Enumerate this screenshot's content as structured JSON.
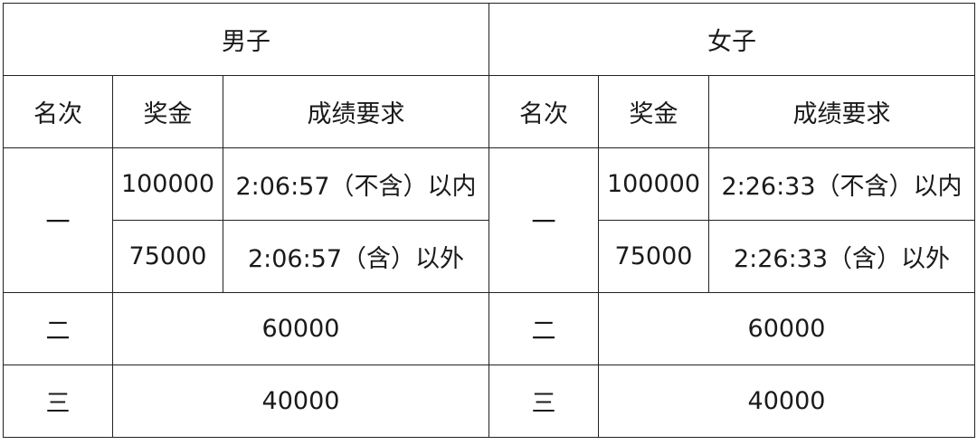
{
  "groups": [
    "男子",
    "女子"
  ],
  "headers": [
    "名次",
    "奖金",
    "成绩要求"
  ],
  "men": {
    "first_rank": "一",
    "first_rows": [
      {
        "prize": "100000",
        "requirement": "2:06:57（不含）以内"
      },
      {
        "prize": "75000",
        "requirement": "2:06:57（含）以外"
      }
    ],
    "others": [
      {
        "rank": "二",
        "prize": "60000"
      },
      {
        "rank": "三",
        "prize": "40000"
      }
    ]
  },
  "women": {
    "first_rank": "一",
    "first_rows": [
      {
        "prize": "100000",
        "requirement": "2:26:33（不含）以内"
      },
      {
        "prize": "75000",
        "requirement": "2:26:33（含）以外"
      }
    ],
    "others": [
      {
        "rank": "二",
        "prize": "60000"
      },
      {
        "rank": "三",
        "prize": "40000"
      }
    ]
  }
}
